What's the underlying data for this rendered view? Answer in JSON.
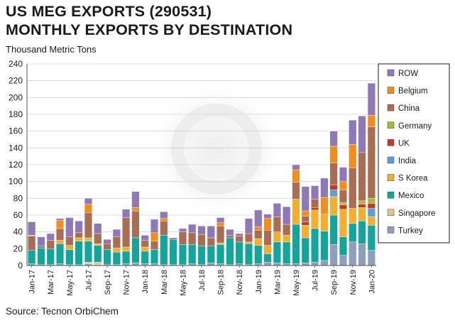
{
  "header": {
    "title_line1": "US MEG EXPORTS (290531)",
    "title_line2": "MONTHLY EXPORTS BY DESTINATION",
    "unit_label": "Thousand Metric Tons"
  },
  "footer": {
    "source": "Source: Tecnon OrbiChem"
  },
  "chart_data": {
    "type": "bar",
    "stacked": true,
    "ylabel": "Thousand Metric Tons",
    "ylim": [
      0,
      240
    ],
    "yticks": [
      0,
      20,
      40,
      60,
      80,
      100,
      120,
      140,
      160,
      180,
      200,
      220,
      240
    ],
    "grid": true,
    "legend_position": "right",
    "categories": [
      "Jan-17",
      "Feb-17",
      "Mar-17",
      "Apr-17",
      "May-17",
      "Jun-17",
      "Jul-17",
      "Aug-17",
      "Sep-17",
      "Oct-17",
      "Nov-17",
      "Dec-17",
      "Jan-18",
      "Feb-18",
      "Mar-18",
      "Apr-18",
      "May-18",
      "Jun-18",
      "Jul-18",
      "Aug-18",
      "Sep-18",
      "Oct-18",
      "Nov-18",
      "Dec-18",
      "Jan-19",
      "Feb-19",
      "Mar-19",
      "Apr-19",
      "May-19",
      "Jun-19",
      "Jul-19",
      "Aug-19",
      "Sep-19",
      "Oct-19",
      "Nov-19",
      "Dec-19",
      "Jan-20"
    ],
    "xtick_labels": [
      "Jan-17",
      "Mar-17",
      "May-17",
      "Jul-17",
      "Sep-17",
      "Nov-17",
      "Jan-18",
      "Mar-18",
      "May-18",
      "Jul-18",
      "Sep-18",
      "Nov-18",
      "Jan-19",
      "Mar-19",
      "May-19",
      "Jul-19",
      "Sep-19",
      "Nov-19",
      "Jan-20"
    ],
    "series": [
      {
        "name": "Turkey",
        "color": "#8e9fbe",
        "values": [
          2,
          1,
          1,
          2,
          1,
          1,
          2,
          1,
          1,
          1,
          2,
          3,
          2,
          2,
          1,
          1,
          1,
          2,
          1,
          3,
          2,
          1,
          2,
          1,
          2,
          4,
          3,
          2,
          2,
          3,
          4,
          6,
          25,
          12,
          28,
          26,
          18
        ]
      },
      {
        "name": "Singapore",
        "color": "#d9c88a",
        "values": [
          0,
          0,
          0,
          0,
          0,
          0,
          2,
          3,
          0,
          0,
          0,
          0,
          0,
          0,
          0,
          0,
          0,
          0,
          0,
          0,
          0,
          0,
          0,
          0,
          0,
          0,
          0,
          0,
          0,
          0,
          0,
          0,
          0,
          0,
          0,
          0,
          0
        ]
      },
      {
        "name": "Mexico",
        "color": "#13a59c",
        "values": [
          16,
          20,
          19,
          24,
          18,
          28,
          25,
          20,
          18,
          15,
          15,
          30,
          15,
          17,
          35,
          30,
          24,
          23,
          22,
          20,
          23,
          32,
          26,
          25,
          22,
          10,
          25,
          26,
          47,
          30,
          40,
          35,
          35,
          22,
          22,
          27,
          30
        ]
      },
      {
        "name": "S Korea",
        "color": "#f2ae2c",
        "values": [
          0,
          0,
          0,
          4,
          5,
          4,
          4,
          2,
          0,
          5,
          5,
          0,
          5,
          0,
          0,
          0,
          0,
          0,
          0,
          0,
          2,
          0,
          0,
          2,
          8,
          10,
          12,
          8,
          30,
          15,
          22,
          20,
          22,
          33,
          18,
          16,
          10
        ]
      },
      {
        "name": "India",
        "color": "#5aa0d8",
        "values": [
          0,
          0,
          0,
          0,
          0,
          0,
          0,
          0,
          0,
          0,
          0,
          0,
          0,
          0,
          0,
          0,
          0,
          0,
          0,
          0,
          0,
          0,
          0,
          0,
          0,
          0,
          0,
          0,
          0,
          0,
          0,
          0,
          8,
          0,
          0,
          0,
          10
        ]
      },
      {
        "name": "UK",
        "color": "#c0392b",
        "values": [
          0,
          0,
          0,
          0,
          0,
          0,
          0,
          0,
          0,
          0,
          0,
          0,
          0,
          0,
          0,
          0,
          0,
          0,
          0,
          0,
          0,
          0,
          0,
          0,
          0,
          0,
          0,
          0,
          0,
          4,
          3,
          0,
          6,
          5,
          0,
          4,
          6
        ]
      },
      {
        "name": "Germany",
        "color": "#a8b83c",
        "values": [
          0,
          0,
          0,
          0,
          0,
          0,
          0,
          0,
          0,
          0,
          0,
          0,
          0,
          0,
          0,
          0,
          0,
          0,
          0,
          0,
          0,
          0,
          0,
          0,
          0,
          0,
          0,
          0,
          0,
          0,
          0,
          0,
          0,
          3,
          0,
          4,
          6
        ]
      },
      {
        "name": "China",
        "color": "#a86d52",
        "values": [
          17,
          2,
          10,
          14,
          10,
          6,
          30,
          12,
          7,
          13,
          35,
          32,
          8,
          10,
          17,
          0,
          15,
          14,
          14,
          10,
          20,
          3,
          7,
          10,
          10,
          18,
          18,
          13,
          20,
          7,
          10,
          0,
          26,
          15,
          48,
          58,
          85
        ]
      },
      {
        "name": "Belgium",
        "color": "#ef8e1c",
        "values": [
          1,
          0,
          0,
          10,
          0,
          0,
          10,
          0,
          0,
          0,
          0,
          4,
          0,
          10,
          3,
          0,
          0,
          0,
          0,
          0,
          4,
          0,
          0,
          0,
          4,
          14,
          0,
          0,
          15,
          6,
          0,
          20,
          20,
          10,
          28,
          0,
          14
        ]
      },
      {
        "name": "ROW",
        "color": "#8e78b8",
        "values": [
          16,
          11,
          8,
          2,
          23,
          14,
          7,
          12,
          5,
          9,
          10,
          19,
          6,
          16,
          8,
          2,
          4,
          10,
          10,
          14,
          6,
          7,
          3,
          18,
          20,
          5,
          16,
          21,
          6,
          29,
          16,
          23,
          18,
          17,
          29,
          43,
          38
        ]
      }
    ],
    "legend_order": [
      "ROW",
      "Belgium",
      "China",
      "Germany",
      "UK",
      "India",
      "S Korea",
      "Mexico",
      "Singapore",
      "Turkey"
    ]
  }
}
